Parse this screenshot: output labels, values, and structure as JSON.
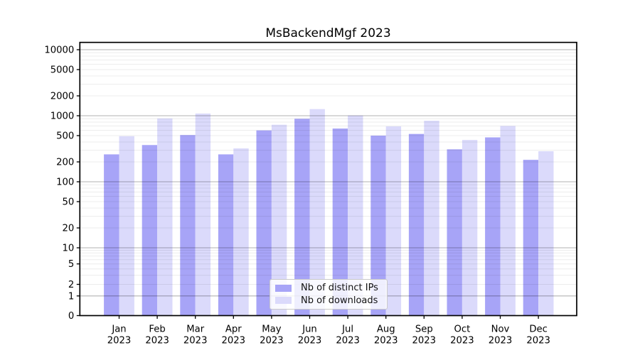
{
  "chart_data": {
    "type": "bar",
    "title": "MsBackendMgf 2023",
    "categories": [
      "Jan",
      "Feb",
      "Mar",
      "Apr",
      "May",
      "Jun",
      "Jul",
      "Aug",
      "Sep",
      "Oct",
      "Nov",
      "Dec"
    ],
    "year_label": "2023",
    "series": [
      {
        "name": "Nb of distinct IPs",
        "color": "#a7a4f7",
        "values": [
          260,
          360,
          510,
          260,
          600,
          900,
          640,
          500,
          530,
          310,
          470,
          215
        ]
      },
      {
        "name": "Nb of downloads",
        "color": "#dbdafb",
        "values": [
          490,
          910,
          1080,
          320,
          730,
          1260,
          1010,
          690,
          840,
          430,
          700,
          290
        ]
      }
    ],
    "yscale": "symlog",
    "y_ticks": [
      0,
      1,
      2,
      5,
      10,
      20,
      50,
      100,
      200,
      500,
      1000,
      2000,
      5000,
      10000
    ],
    "ylim": [
      0,
      12900
    ],
    "grid": true,
    "legend_position": "lower center",
    "colors": {
      "grid_minor": "#e9e9e9",
      "grid_major": "#b3b3b3",
      "axis": "#000000",
      "background": "#ffffff"
    }
  }
}
